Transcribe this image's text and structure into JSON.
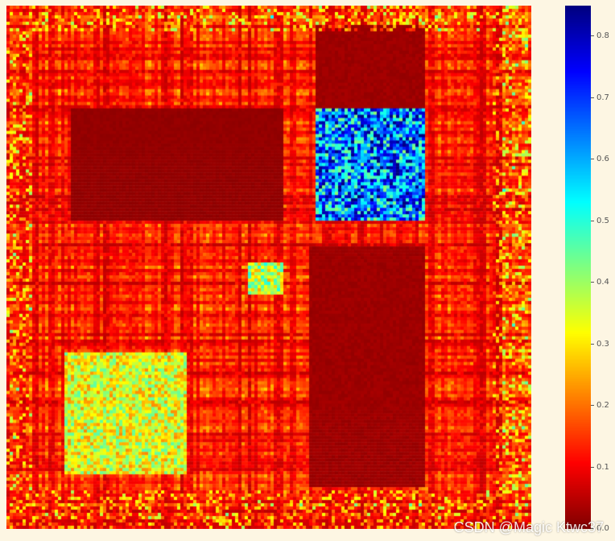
{
  "chart_data": {
    "type": "heatmap",
    "colormap": "jet",
    "colorbar": {
      "range": [
        0.0,
        0.85
      ],
      "ticks": [
        "0.0",
        "0.1",
        "0.2",
        "0.3",
        "0.4",
        "0.5",
        "0.6",
        "0.7",
        "0.8"
      ]
    },
    "approx_dims": {
      "rows": 163,
      "cols": 163
    },
    "description_of_blocks": [
      {
        "rows": [
          32,
          67
        ],
        "cols": [
          96,
          130
        ],
        "level": 0.75
      },
      {
        "rows": [
          32,
          67
        ],
        "cols": [
          20,
          86
        ],
        "level": 0.02
      },
      {
        "rows": [
          108,
          146
        ],
        "cols": [
          18,
          56
        ],
        "level": 0.4
      },
      {
        "rows": [
          80,
          90
        ],
        "cols": [
          75,
          86
        ],
        "level": 0.45
      },
      {
        "rows": [
          6,
          32
        ],
        "cols": [
          96,
          130
        ],
        "level": 0.03
      },
      {
        "rows": [
          75,
          150
        ],
        "cols": [
          94,
          130
        ],
        "level": 0.03
      }
    ]
  },
  "watermark": "CSDN @Magic Ktwc37"
}
